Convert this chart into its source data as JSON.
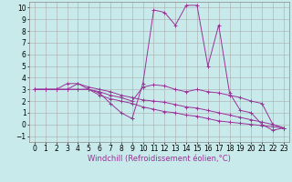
{
  "xlabel": "Windchill (Refroidissement éolien,°C)",
  "background_color": "#c8eaea",
  "grid_color": "#aaaaaa",
  "line_color": "#993399",
  "xlim": [
    -0.5,
    23.5
  ],
  "ylim": [
    -1.5,
    10.5
  ],
  "xticks": [
    0,
    1,
    2,
    3,
    4,
    5,
    6,
    7,
    8,
    9,
    10,
    11,
    12,
    13,
    14,
    15,
    16,
    17,
    18,
    19,
    20,
    21,
    22,
    23
  ],
  "yticks": [
    -1,
    0,
    1,
    2,
    3,
    4,
    5,
    6,
    7,
    8,
    9,
    10
  ],
  "lines": [
    {
      "x": [
        0,
        1,
        2,
        3,
        4,
        5,
        6,
        7,
        8,
        9,
        10,
        11,
        12,
        13,
        14,
        15,
        16,
        17,
        18,
        19,
        20,
        21,
        22,
        23
      ],
      "y": [
        3,
        3,
        3,
        3,
        3.5,
        3,
        2.7,
        1.8,
        1.0,
        0.5,
        3.5,
        9.8,
        9.6,
        8.5,
        10.2,
        10.2,
        5.0,
        8.5,
        2.7,
        1.2,
        1.0,
        0.0,
        -0.5,
        -0.3
      ]
    },
    {
      "x": [
        0,
        1,
        2,
        3,
        4,
        5,
        6,
        7,
        8,
        9,
        10,
        11,
        12,
        13,
        14,
        15,
        16,
        17,
        18,
        19,
        20,
        21,
        22,
        23
      ],
      "y": [
        3,
        3,
        3,
        3,
        3,
        3,
        2.8,
        2.5,
        2.3,
        2.0,
        3.2,
        3.4,
        3.3,
        3.0,
        2.8,
        3.0,
        2.8,
        2.7,
        2.5,
        2.3,
        2.0,
        1.8,
        0.0,
        -0.3
      ]
    },
    {
      "x": [
        0,
        1,
        2,
        3,
        4,
        5,
        6,
        7,
        8,
        9,
        10,
        11,
        12,
        13,
        14,
        15,
        16,
        17,
        18,
        19,
        20,
        21,
        22,
        23
      ],
      "y": [
        3,
        3,
        3,
        3.5,
        3.5,
        3.2,
        3.0,
        2.8,
        2.5,
        2.3,
        2.1,
        2.0,
        1.9,
        1.7,
        1.5,
        1.4,
        1.2,
        1.0,
        0.8,
        0.6,
        0.4,
        0.2,
        0.0,
        -0.3
      ]
    },
    {
      "x": [
        0,
        1,
        2,
        3,
        4,
        5,
        6,
        7,
        8,
        9,
        10,
        11,
        12,
        13,
        14,
        15,
        16,
        17,
        18,
        19,
        20,
        21,
        22,
        23
      ],
      "y": [
        3,
        3,
        3,
        3,
        3,
        3,
        2.5,
        2.2,
        2.0,
        1.8,
        1.5,
        1.3,
        1.1,
        1.0,
        0.8,
        0.7,
        0.5,
        0.3,
        0.2,
        0.1,
        0.0,
        -0.1,
        -0.2,
        -0.3
      ]
    }
  ],
  "xlabel_fontsize": 6,
  "tick_fontsize": 5.5
}
